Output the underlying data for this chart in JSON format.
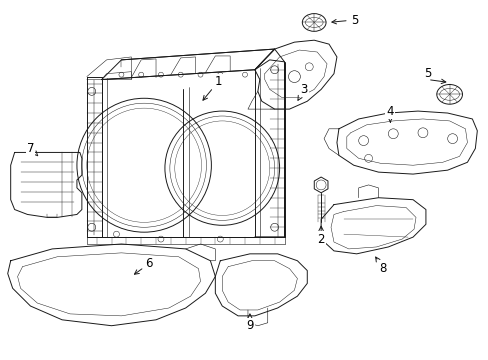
{
  "background_color": "#ffffff",
  "line_color": "#1a1a1a",
  "label_color": "#000000",
  "lw": 0.7,
  "parts": {
    "radiator_frame_label": "1",
    "bracket_top_label": "3",
    "bracket_right_label": "4",
    "grommet_label": "5",
    "duct_left_label": "6",
    "panel_left_label": "7",
    "guide_right_label": "8",
    "duct_bottom_label": "9",
    "bolt_label": "2"
  }
}
